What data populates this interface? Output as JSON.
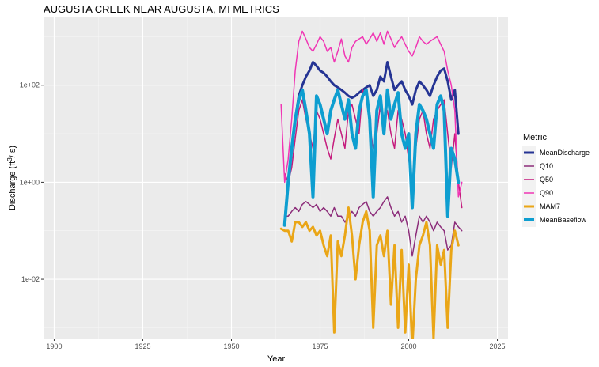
{
  "chart_data": {
    "type": "line",
    "title": "AUGUSTA CREEK NEAR AUGUSTA, MI  METRICS",
    "xlabel": "Year",
    "ylabel": "Discharge (ft³/s)",
    "ylabel_parts": {
      "prefix": "Discharge (ft",
      "superscript": "3",
      "suffix": "/ s)"
    },
    "x_scale": "linear",
    "y_scale": "log10",
    "xlim": [
      1897,
      2028
    ],
    "ylim": [
      0.0006,
      2500
    ],
    "x_ticks": [
      1900,
      1925,
      1950,
      1975,
      2000,
      2025
    ],
    "x_tick_labels": [
      "1900",
      "1925",
      "1950",
      "1975",
      "2000",
      "2025"
    ],
    "y_ticks": [
      0.01,
      1,
      100
    ],
    "y_tick_labels": [
      "1e-02",
      "1e+00",
      "1e+02"
    ],
    "grid": true,
    "panel_background": "#ebebeb",
    "legend": {
      "title": "Metric",
      "position": "right"
    },
    "x": [
      1964,
      1965,
      1966,
      1967,
      1968,
      1969,
      1970,
      1971,
      1972,
      1973,
      1974,
      1975,
      1976,
      1977,
      1978,
      1979,
      1980,
      1981,
      1982,
      1983,
      1984,
      1985,
      1986,
      1987,
      1988,
      1989,
      1990,
      1991,
      1992,
      1993,
      1994,
      1995,
      1996,
      1997,
      1998,
      1999,
      2000,
      2001,
      2002,
      2003,
      2004,
      2005,
      2006,
      2007,
      2008,
      2009,
      2010,
      2011,
      2012,
      2013,
      2014,
      2015
    ],
    "series": [
      {
        "name": "MeanDischarge",
        "color": "#253494",
        "width": 3,
        "values": [
          null,
          0.15,
          1.0,
          5,
          20,
          60,
          100,
          150,
          200,
          300,
          250,
          200,
          180,
          150,
          120,
          100,
          90,
          80,
          70,
          60,
          55,
          60,
          70,
          80,
          90,
          100,
          60,
          80,
          150,
          120,
          300,
          150,
          80,
          100,
          120,
          80,
          60,
          40,
          80,
          120,
          100,
          80,
          60,
          100,
          150,
          200,
          220,
          120,
          50,
          80,
          10,
          null
        ]
      },
      {
        "name": "Q10",
        "color": "#8c2d7a",
        "width": 1.5,
        "values": [
          null,
          0.2,
          0.2,
          0.25,
          0.3,
          0.25,
          0.35,
          0.4,
          0.35,
          0.3,
          0.35,
          0.25,
          0.3,
          0.25,
          0.2,
          0.3,
          0.2,
          0.2,
          0.15,
          0.2,
          0.25,
          0.2,
          0.3,
          0.35,
          0.4,
          0.25,
          0.2,
          0.25,
          0.3,
          0.4,
          0.5,
          0.3,
          0.2,
          0.25,
          0.15,
          0.2,
          0.1,
          0.03,
          0.08,
          0.2,
          0.15,
          0.2,
          0.15,
          0.1,
          0.15,
          0.12,
          0.1,
          0.04,
          0.05,
          0.15,
          0.12,
          0.1
        ]
      },
      {
        "name": "Q50",
        "color": "#c51b7d",
        "width": 1.5,
        "values": [
          null,
          1.5,
          1.0,
          2,
          8,
          30,
          50,
          20,
          10,
          5,
          30,
          20,
          10,
          5,
          3,
          8,
          20,
          10,
          5,
          30,
          40,
          20,
          10,
          80,
          60,
          15,
          5,
          10,
          40,
          20,
          30,
          10,
          5,
          30,
          20,
          10,
          3,
          1,
          5,
          20,
          30,
          10,
          5,
          20,
          30,
          40,
          50,
          10,
          2,
          10,
          1,
          0.3
        ]
      },
      {
        "name": "Q90",
        "color": "#f036b4",
        "width": 1.5,
        "values": [
          40,
          1.0,
          3,
          20,
          200,
          800,
          1300,
          900,
          600,
          500,
          700,
          1000,
          800,
          500,
          600,
          300,
          500,
          900,
          400,
          300,
          600,
          800,
          900,
          1000,
          700,
          900,
          1200,
          800,
          1200,
          700,
          1300,
          900,
          600,
          800,
          1000,
          700,
          500,
          400,
          600,
          1000,
          800,
          700,
          800,
          900,
          1000,
          700,
          500,
          200,
          100,
          30,
          0.5,
          1.0
        ]
      },
      {
        "name": "MAM7",
        "color": "#eaa617",
        "width": 3,
        "values": [
          0.11,
          0.1,
          0.1,
          0.06,
          0.15,
          0.15,
          0.12,
          0.15,
          0.1,
          0.12,
          0.08,
          0.1,
          0.05,
          0.03,
          0.08,
          0.0008,
          0.06,
          0.03,
          0.08,
          0.3,
          0.08,
          0.01,
          0.05,
          0.15,
          0.25,
          0.1,
          0.001,
          0.05,
          0.08,
          0.03,
          0.1,
          0.003,
          0.05,
          0.001,
          0.04,
          0.0008,
          0.02,
          0.0004,
          0.01,
          0.05,
          0.08,
          0.15,
          0.05,
          0.0006,
          0.05,
          0.02,
          0.04,
          0.001,
          0.04,
          0.1,
          0.05,
          null
        ]
      },
      {
        "name": "MeanBaseflow",
        "color": "#0e9ed0",
        "width": 4,
        "values": [
          null,
          0.13,
          1.0,
          5,
          20,
          50,
          80,
          30,
          10,
          0.5,
          60,
          40,
          20,
          10,
          30,
          50,
          80,
          40,
          20,
          50,
          10,
          5,
          30,
          60,
          80,
          20,
          0.5,
          30,
          60,
          10,
          80,
          20,
          40,
          70,
          10,
          5,
          10,
          0.3,
          10,
          40,
          30,
          20,
          10,
          5,
          40,
          60,
          30,
          0.2,
          5,
          3,
          1.0,
          null
        ]
      }
    ]
  }
}
